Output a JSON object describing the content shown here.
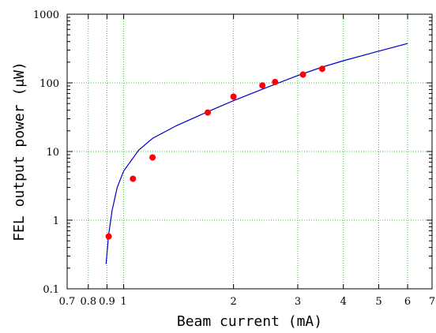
{
  "chart_data": {
    "type": "scatter",
    "title": "",
    "xlabel": "Beam current (mA)",
    "ylabel": "FEL output power (μW)",
    "xscale": "log",
    "yscale": "log",
    "xlim": [
      0.7,
      7
    ],
    "ylim": [
      0.1,
      1000
    ],
    "grid": true,
    "legend": "none",
    "x_ticks": [
      0.7,
      0.8,
      0.9,
      1,
      2,
      3,
      4,
      5,
      6,
      7
    ],
    "x_tick_labels": [
      "0.7",
      "0.8",
      "0.9",
      "1",
      "2",
      "3",
      "4",
      "5",
      "6",
      "7"
    ],
    "y_ticks": [
      0.1,
      1,
      10,
      100,
      1000
    ],
    "y_tick_labels": [
      "0.1",
      "1",
      "10",
      "100",
      "1000"
    ],
    "series": [
      {
        "type": "scatter",
        "color": "#ff0000",
        "x": [
          0.91,
          1.06,
          1.2,
          1.7,
          2.0,
          2.4,
          2.6,
          3.1,
          3.5
        ],
        "y": [
          0.58,
          4.0,
          8.2,
          37,
          63,
          92,
          103,
          132,
          160
        ]
      },
      {
        "type": "line",
        "color": "#0000cc",
        "x": [
          0.895,
          0.91,
          0.93,
          0.96,
          1.0,
          1.1,
          1.2,
          1.4,
          1.7,
          2.0,
          2.5,
          3.0,
          3.5,
          4.0,
          5.0,
          6.0
        ],
        "y": [
          0.23,
          0.62,
          1.4,
          3.0,
          5.2,
          10.5,
          15.5,
          24,
          38,
          55,
          88,
          128,
          170,
          210,
          290,
          375
        ]
      }
    ]
  },
  "colors": {
    "grid": "#33cc33",
    "axis": "#000000"
  }
}
